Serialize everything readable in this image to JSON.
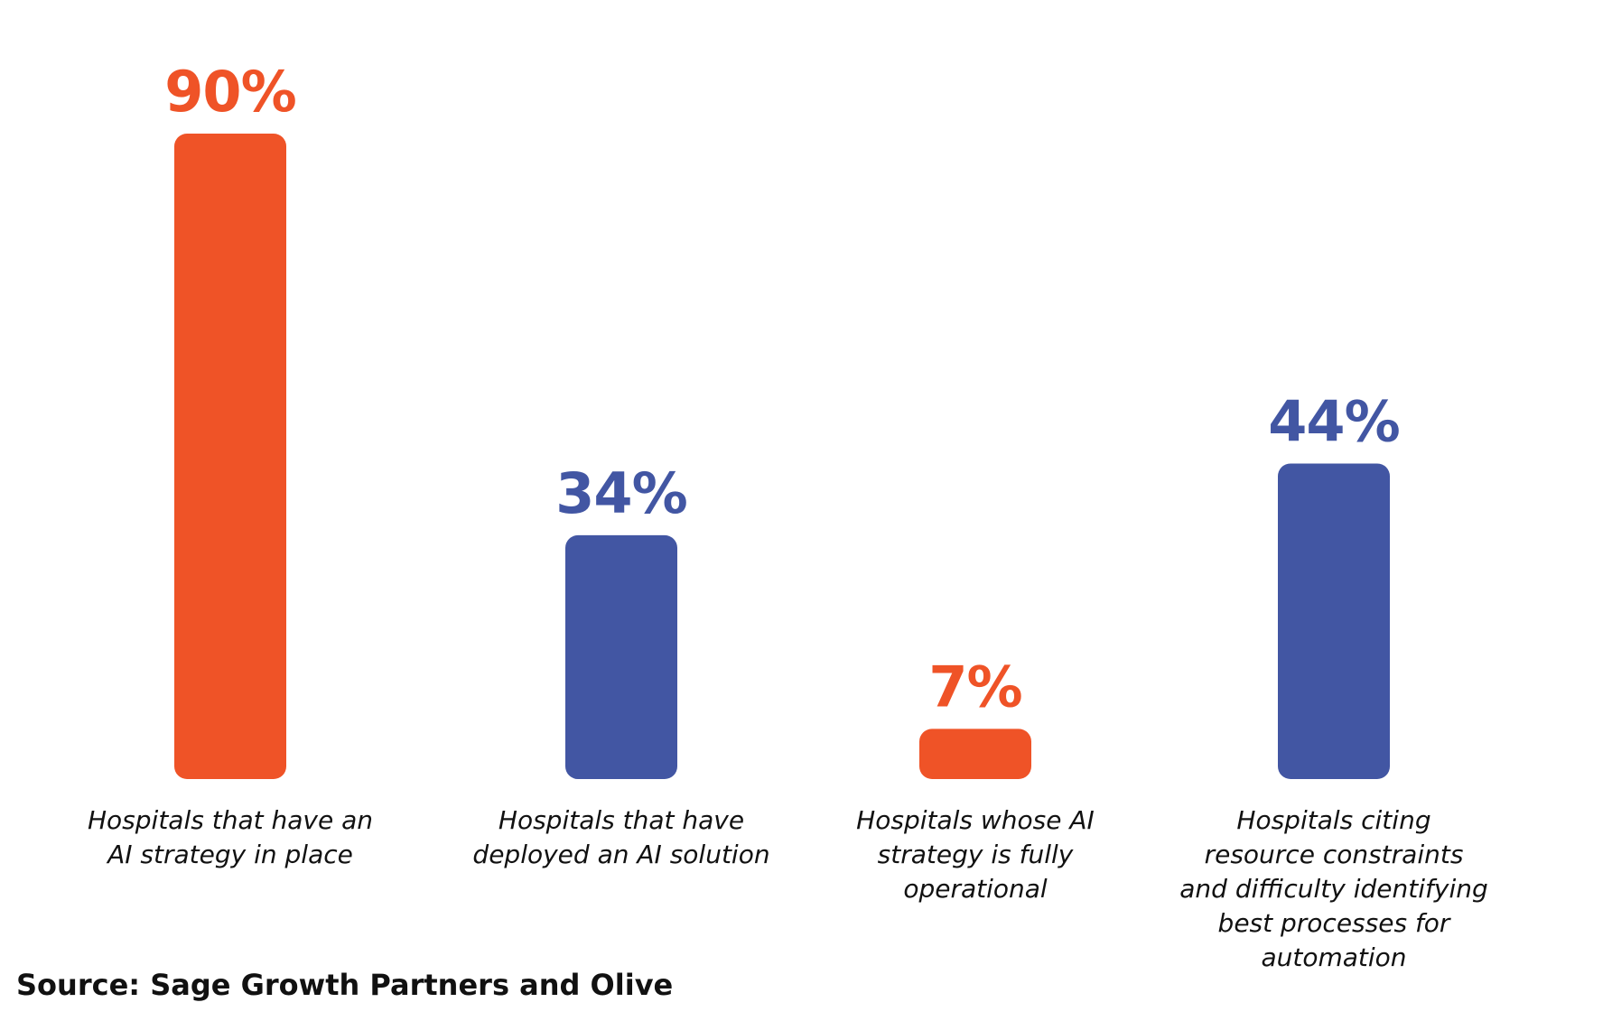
{
  "chart_data": {
    "type": "bar",
    "categories": [
      "Hospitals that have an AI strategy in place",
      "Hospitals that have deployed an AI solution",
      "Hospitals whose AI strategy is fully operational",
      "Hospitals citing resource constraints and difficulty identifying best processes for automation"
    ],
    "category_lines": [
      [
        "Hospitals that have an",
        "AI strategy in place"
      ],
      [
        "Hospitals that have",
        "deployed an AI solution"
      ],
      [
        "Hospitals whose AI",
        "strategy is fully",
        "operational"
      ],
      [
        "Hospitals citing",
        "resource constraints",
        "and difficulty identifying",
        "best processes for",
        "automation"
      ]
    ],
    "values": [
      90,
      34,
      7,
      44
    ],
    "value_labels": [
      "90%",
      "34%",
      "7%",
      "44%"
    ],
    "unit": "%",
    "bar_colors": [
      "#ef5327",
      "#4256a3",
      "#ef5327",
      "#4256a3"
    ],
    "ylim": [
      0,
      90
    ],
    "grid": false,
    "legend": "none",
    "xlabel": "",
    "ylabel": ""
  },
  "source": "Source: Sage Growth Partners and Olive"
}
